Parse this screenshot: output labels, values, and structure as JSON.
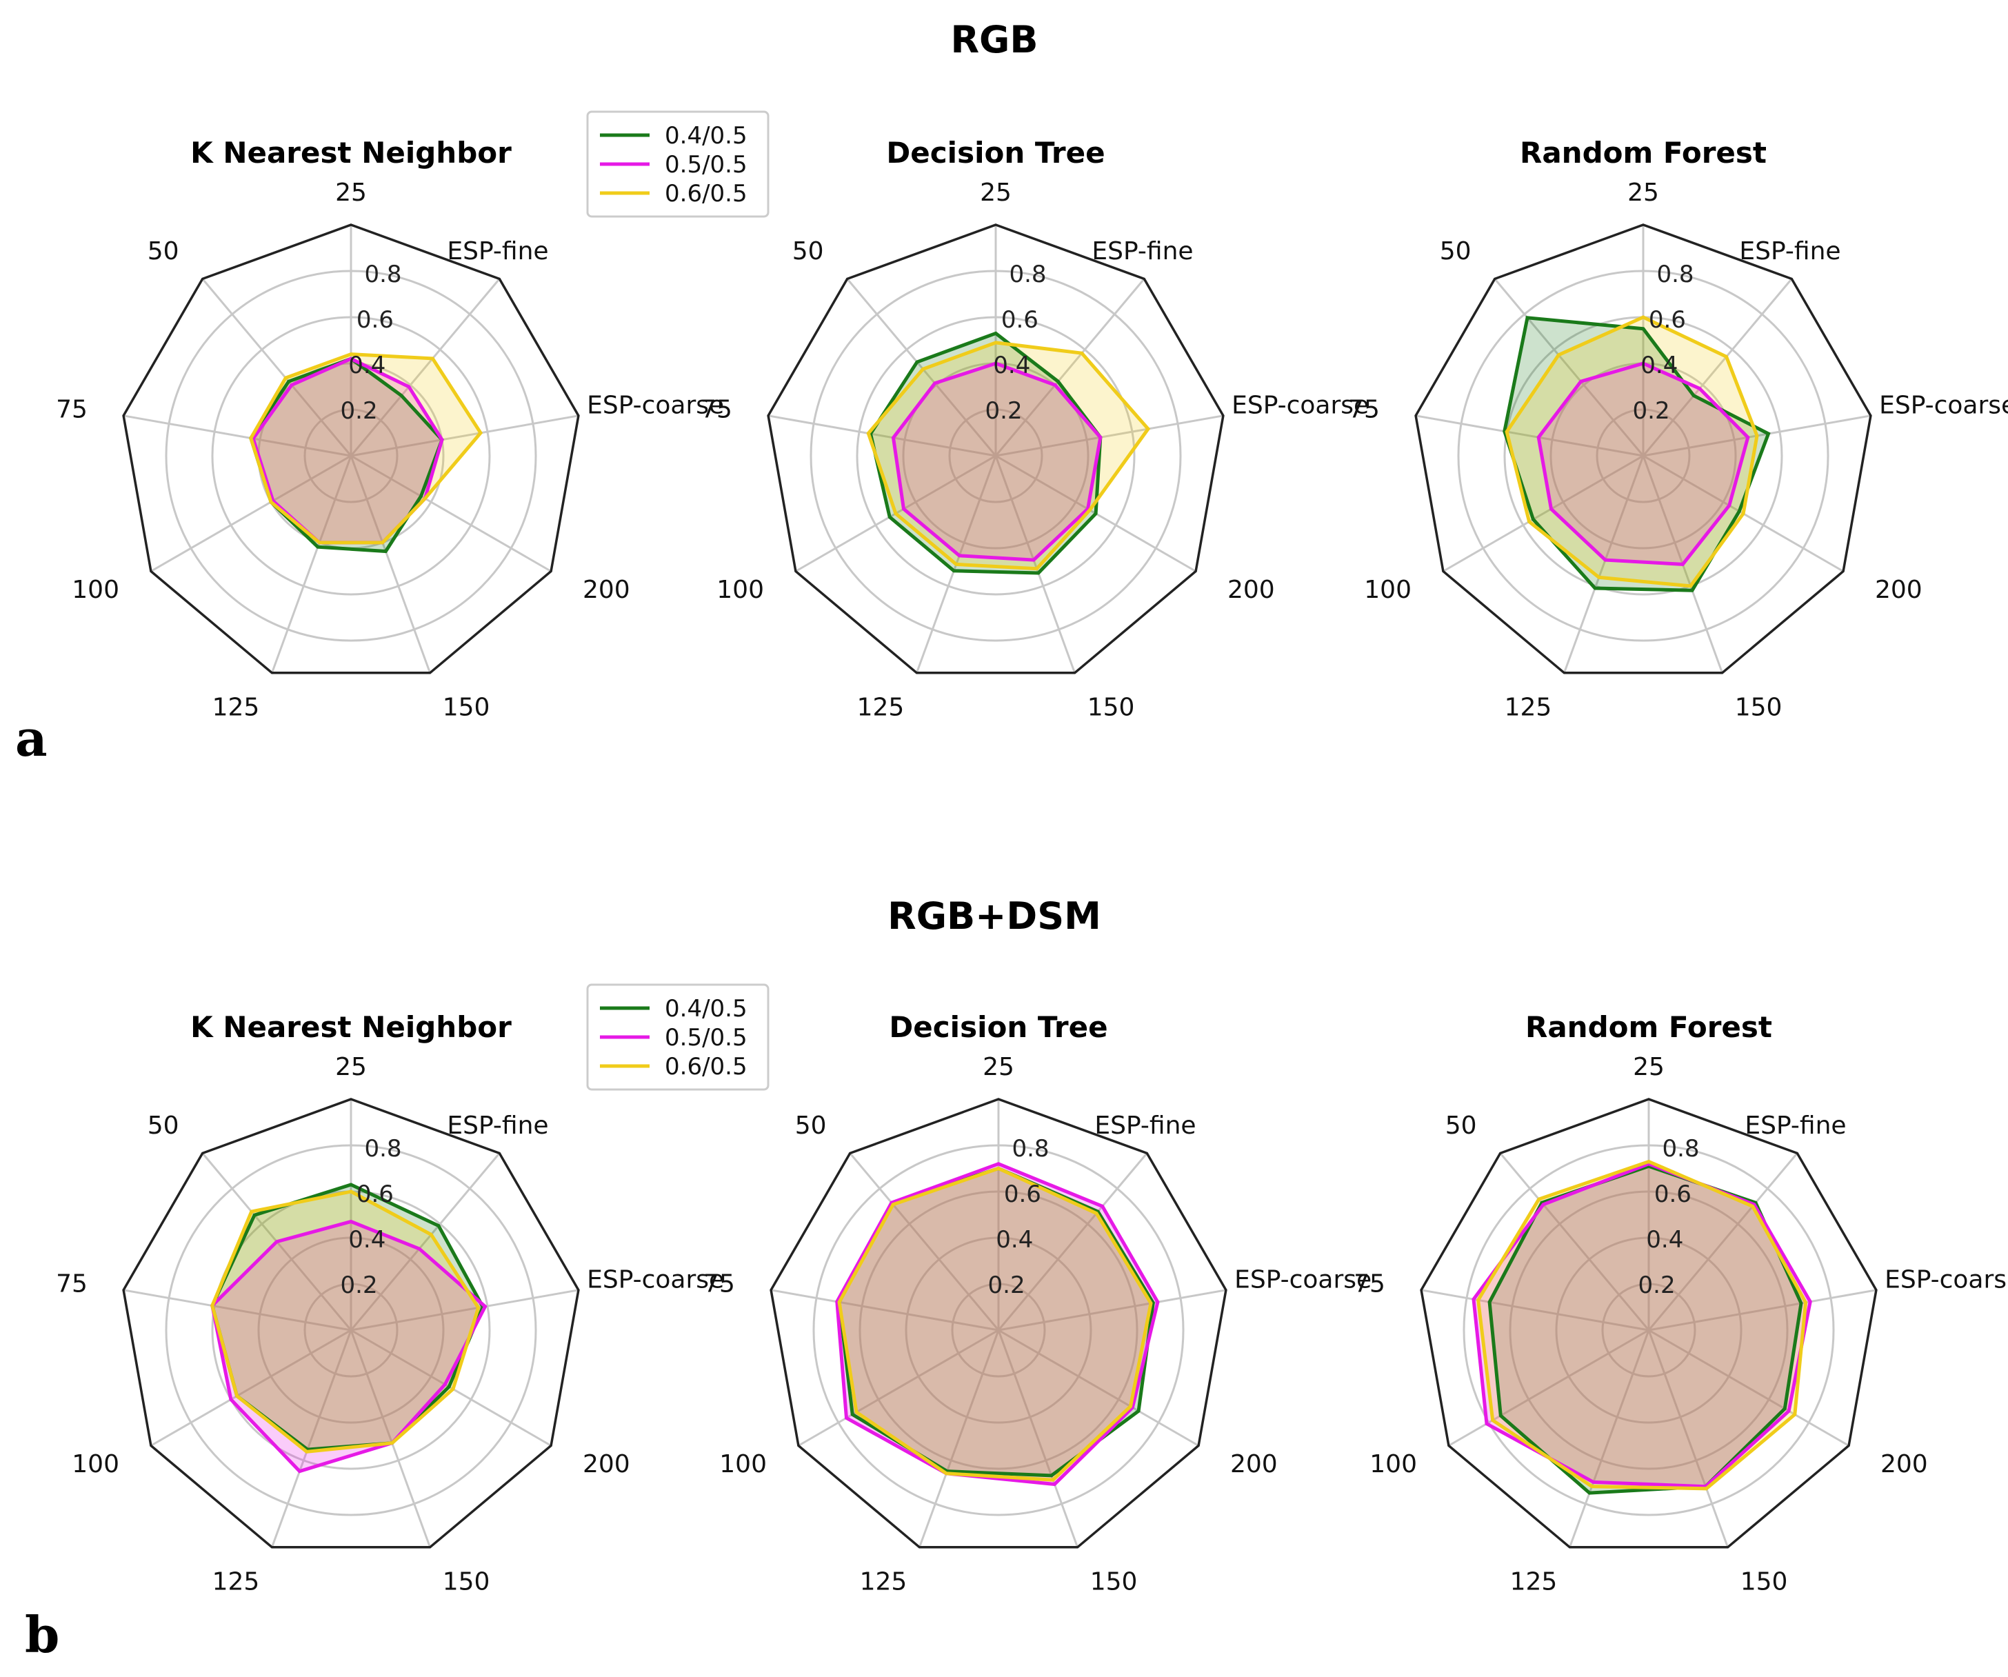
{
  "sections": [
    {
      "title": "RGB",
      "panel_label": "a",
      "legend": [
        {
          "label": "0.4/0.5",
          "color": "#1a7a1a"
        },
        {
          "label": "0.5/0.5",
          "color": "#e619e6"
        },
        {
          "label": "0.6/0.5",
          "color": "#f0cc1a"
        }
      ]
    },
    {
      "title": "RGB+DSM",
      "panel_label": "b",
      "legend": [
        {
          "label": "0.4/0.5",
          "color": "#1a7a1a"
        },
        {
          "label": "0.5/0.5",
          "color": "#e619e6"
        },
        {
          "label": "0.6/0.5",
          "color": "#f0cc1a"
        }
      ]
    }
  ],
  "chart_data": [
    {
      "type": "radar",
      "section": "RGB",
      "title": "K Nearest Neighbor",
      "categories": [
        "25",
        "ESP-fine",
        "ESP-coarse",
        "200",
        "150",
        "125",
        "100",
        "75",
        "50"
      ],
      "radial_ticks": [
        "0.2",
        "0.4",
        "0.6",
        "0.8"
      ],
      "rlim": [
        0,
        1
      ],
      "series": [
        {
          "name": "0.4/0.5",
          "color": "#1a7a1a",
          "values": [
            0.42,
            0.34,
            0.4,
            0.35,
            0.44,
            0.42,
            0.4,
            0.44,
            0.42
          ]
        },
        {
          "name": "0.5/0.5",
          "color": "#e619e6",
          "values": [
            0.42,
            0.39,
            0.4,
            0.37,
            0.4,
            0.4,
            0.39,
            0.43,
            0.4
          ]
        },
        {
          "name": "0.6/0.5",
          "color": "#f0cc1a",
          "values": [
            0.44,
            0.55,
            0.57,
            0.37,
            0.4,
            0.4,
            0.4,
            0.44,
            0.44
          ]
        }
      ]
    },
    {
      "type": "radar",
      "section": "RGB",
      "title": "Decision Tree",
      "categories": [
        "25",
        "ESP-fine",
        "ESP-coarse",
        "200",
        "150",
        "125",
        "100",
        "75",
        "50"
      ],
      "radial_ticks": [
        "0.2",
        "0.4",
        "0.6",
        "0.8"
      ],
      "rlim": [
        0,
        1
      ],
      "series": [
        {
          "name": "0.4/0.5",
          "color": "#1a7a1a",
          "values": [
            0.53,
            0.42,
            0.46,
            0.5,
            0.54,
            0.53,
            0.53,
            0.55,
            0.53
          ]
        },
        {
          "name": "0.5/0.5",
          "color": "#e619e6",
          "values": [
            0.4,
            0.4,
            0.46,
            0.46,
            0.48,
            0.46,
            0.46,
            0.45,
            0.41
          ]
        },
        {
          "name": "0.6/0.5",
          "color": "#f0cc1a",
          "values": [
            0.49,
            0.58,
            0.67,
            0.47,
            0.52,
            0.5,
            0.5,
            0.56,
            0.49
          ]
        }
      ]
    },
    {
      "type": "radar",
      "section": "RGB",
      "title": "Random Forest",
      "categories": [
        "25",
        "ESP-fine",
        "ESP-coarse",
        "200",
        "150",
        "125",
        "100",
        "75",
        "50"
      ],
      "radial_ticks": [
        "0.2",
        "0.4",
        "0.6",
        "0.8"
      ],
      "rlim": [
        0,
        1
      ],
      "series": [
        {
          "name": "0.4/0.5",
          "color": "#1a7a1a",
          "values": [
            0.55,
            0.34,
            0.55,
            0.48,
            0.62,
            0.61,
            0.55,
            0.61,
            0.78
          ]
        },
        {
          "name": "0.5/0.5",
          "color": "#e619e6",
          "values": [
            0.4,
            0.38,
            0.46,
            0.43,
            0.5,
            0.48,
            0.46,
            0.46,
            0.42
          ]
        },
        {
          "name": "0.6/0.5",
          "color": "#f0cc1a",
          "values": [
            0.6,
            0.56,
            0.5,
            0.5,
            0.6,
            0.56,
            0.57,
            0.6,
            0.57
          ]
        }
      ]
    },
    {
      "type": "radar",
      "section": "RGB+DSM",
      "title": "K Nearest Neighbor",
      "categories": [
        "25",
        "ESP-fine",
        "ESP-coarse",
        "200",
        "150",
        "125",
        "100",
        "75",
        "50"
      ],
      "radial_ticks": [
        "0.2",
        "0.4",
        "0.6",
        "0.8"
      ],
      "rlim": [
        0,
        1
      ],
      "series": [
        {
          "name": "0.4/0.5",
          "color": "#1a7a1a",
          "values": [
            0.63,
            0.59,
            0.58,
            0.49,
            0.52,
            0.55,
            0.57,
            0.61,
            0.65
          ]
        },
        {
          "name": "0.5/0.5",
          "color": "#e619e6",
          "values": [
            0.47,
            0.46,
            0.59,
            0.47,
            0.52,
            0.65,
            0.6,
            0.61,
            0.5
          ]
        },
        {
          "name": "0.6/0.5",
          "color": "#f0cc1a",
          "values": [
            0.6,
            0.54,
            0.56,
            0.51,
            0.52,
            0.56,
            0.57,
            0.61,
            0.67
          ]
        }
      ]
    },
    {
      "type": "radar",
      "section": "RGB+DSM",
      "title": "Decision Tree",
      "categories": [
        "25",
        "ESP-fine",
        "ESP-coarse",
        "200",
        "150",
        "125",
        "100",
        "75",
        "50"
      ],
      "radial_ticks": [
        "0.2",
        "0.4",
        "0.6",
        "0.8"
      ],
      "rlim": [
        0,
        1
      ],
      "series": [
        {
          "name": "0.4/0.5",
          "color": "#1a7a1a",
          "values": [
            0.7,
            0.67,
            0.68,
            0.7,
            0.67,
            0.65,
            0.73,
            0.7,
            0.72
          ]
        },
        {
          "name": "0.5/0.5",
          "color": "#e619e6",
          "values": [
            0.72,
            0.7,
            0.7,
            0.67,
            0.71,
            0.66,
            0.76,
            0.71,
            0.72
          ]
        },
        {
          "name": "0.6/0.5",
          "color": "#f0cc1a",
          "values": [
            0.7,
            0.66,
            0.67,
            0.66,
            0.69,
            0.66,
            0.71,
            0.7,
            0.71
          ]
        }
      ]
    },
    {
      "type": "radar",
      "section": "RGB+DSM",
      "title": "Random Forest",
      "categories": [
        "25",
        "ESP-fine",
        "ESP-coarse",
        "200",
        "150",
        "125",
        "100",
        "75",
        "50"
      ],
      "radial_ticks": [
        "0.2",
        "0.4",
        "0.6",
        "0.8"
      ],
      "rlim": [
        0,
        1
      ],
      "series": [
        {
          "name": "0.4/0.5",
          "color": "#1a7a1a",
          "values": [
            0.71,
            0.72,
            0.67,
            0.68,
            0.72,
            0.75,
            0.74,
            0.7,
            0.72
          ]
        },
        {
          "name": "0.5/0.5",
          "color": "#e619e6",
          "values": [
            0.72,
            0.71,
            0.71,
            0.7,
            0.72,
            0.7,
            0.81,
            0.77,
            0.71
          ]
        },
        {
          "name": "0.6/0.5",
          "color": "#f0cc1a",
          "values": [
            0.73,
            0.7,
            0.69,
            0.73,
            0.73,
            0.72,
            0.78,
            0.75,
            0.74
          ]
        }
      ]
    }
  ]
}
